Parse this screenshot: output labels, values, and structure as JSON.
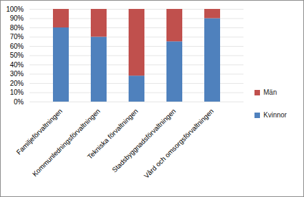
{
  "chart_data": {
    "type": "bar",
    "stacked": true,
    "grid": true,
    "legend": "right",
    "categories": [
      "Familjeförvaltningen",
      "Kommunledningsförvaltningen",
      "Tekniska förvaltningen",
      "Stadsbyggnadsförvaltningen",
      "Vård och omsorgsförvaltningen"
    ],
    "series": [
      {
        "name": "Kvinnor",
        "color": "#4f81bd",
        "values": [
          80,
          70,
          28,
          65,
          90
        ]
      },
      {
        "name": "Män",
        "color": "#c0504d",
        "values": [
          20,
          30,
          72,
          35,
          10
        ]
      }
    ],
    "ylim": [
      0,
      100
    ],
    "yticks": [
      {
        "value": 0,
        "label": "0%"
      },
      {
        "value": 10,
        "label": "10%"
      },
      {
        "value": 20,
        "label": "20%"
      },
      {
        "value": 30,
        "label": "30%"
      },
      {
        "value": 40,
        "label": "40%"
      },
      {
        "value": 50,
        "label": "50%"
      },
      {
        "value": 60,
        "label": "60%"
      },
      {
        "value": 70,
        "label": "70%"
      },
      {
        "value": 80,
        "label": "80%"
      },
      {
        "value": 90,
        "label": "90%"
      },
      {
        "value": 100,
        "label": "100%"
      }
    ]
  }
}
